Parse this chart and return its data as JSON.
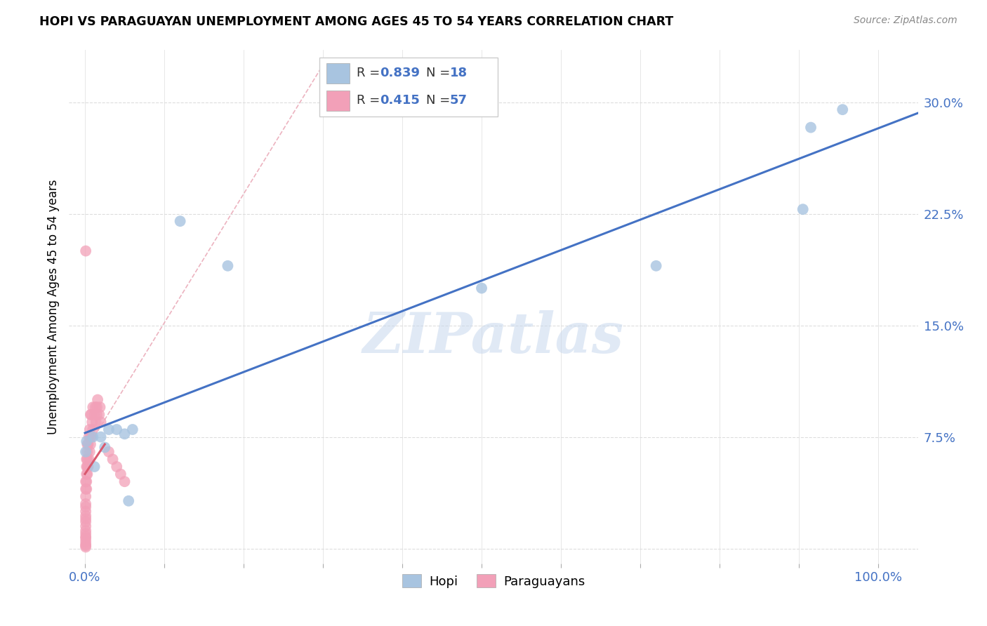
{
  "title": "HOPI VS PARAGUAYAN UNEMPLOYMENT AMONG AGES 45 TO 54 YEARS CORRELATION CHART",
  "source": "Source: ZipAtlas.com",
  "ylabel": "Unemployment Among Ages 45 to 54 years",
  "ytick_values": [
    0.0,
    0.075,
    0.15,
    0.225,
    0.3
  ],
  "ytick_labels": [
    "",
    "7.5%",
    "15.0%",
    "22.5%",
    "30.0%"
  ],
  "xtick_values": [
    0.0,
    0.1,
    0.2,
    0.3,
    0.4,
    0.5,
    0.6,
    0.7,
    0.8,
    0.9,
    1.0
  ],
  "xtick_labels": [
    "0.0%",
    "",
    "",
    "",
    "",
    "",
    "",
    "",
    "",
    "",
    "100.0%"
  ],
  "xlim": [
    -0.02,
    1.05
  ],
  "ylim": [
    -0.01,
    0.335
  ],
  "hopi_color": "#a8c4e0",
  "paraguayan_color": "#f2a0b8",
  "hopi_line_color": "#4472c4",
  "paraguayan_line_color": "#d9596e",
  "diag_line_color": "#e8a0b0",
  "R_hopi": "0.839",
  "N_hopi": "18",
  "R_paraguayan": "0.415",
  "N_paraguayan": "57",
  "hopi_x": [
    0.001,
    0.002,
    0.01,
    0.012,
    0.02,
    0.025,
    0.03,
    0.04,
    0.05,
    0.055,
    0.06,
    0.12,
    0.18,
    0.5,
    0.72,
    0.905,
    0.915,
    0.955
  ],
  "hopi_y": [
    0.065,
    0.072,
    0.075,
    0.055,
    0.075,
    0.068,
    0.08,
    0.08,
    0.077,
    0.032,
    0.08,
    0.22,
    0.19,
    0.175,
    0.19,
    0.228,
    0.283,
    0.295
  ],
  "paraguayan_x": [
    0.001,
    0.001,
    0.001,
    0.001,
    0.001,
    0.001,
    0.001,
    0.001,
    0.001,
    0.001,
    0.001,
    0.001,
    0.001,
    0.001,
    0.001,
    0.001,
    0.001,
    0.001,
    0.002,
    0.002,
    0.002,
    0.002,
    0.002,
    0.003,
    0.003,
    0.003,
    0.003,
    0.003,
    0.004,
    0.004,
    0.005,
    0.005,
    0.006,
    0.006,
    0.007,
    0.007,
    0.007,
    0.008,
    0.008,
    0.009,
    0.01,
    0.01,
    0.012,
    0.013,
    0.014,
    0.015,
    0.015,
    0.016,
    0.018,
    0.019,
    0.02,
    0.03,
    0.035,
    0.04,
    0.045,
    0.05,
    0.001
  ],
  "paraguayan_y": [
    0.001,
    0.002,
    0.003,
    0.005,
    0.007,
    0.008,
    0.01,
    0.012,
    0.015,
    0.018,
    0.02,
    0.022,
    0.025,
    0.028,
    0.03,
    0.035,
    0.04,
    0.045,
    0.04,
    0.045,
    0.05,
    0.055,
    0.06,
    0.05,
    0.055,
    0.06,
    0.065,
    0.07,
    0.055,
    0.07,
    0.06,
    0.075,
    0.065,
    0.08,
    0.07,
    0.075,
    0.09,
    0.075,
    0.09,
    0.085,
    0.08,
    0.095,
    0.09,
    0.095,
    0.085,
    0.09,
    0.095,
    0.1,
    0.09,
    0.095,
    0.085,
    0.065,
    0.06,
    0.055,
    0.05,
    0.045,
    0.2
  ],
  "watermark": "ZIPatlas",
  "background_color": "#ffffff",
  "grid_color": "#dddddd",
  "label_color": "#4472c4"
}
